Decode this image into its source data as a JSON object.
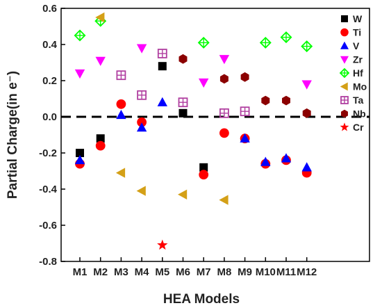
{
  "chart_data": {
    "type": "scatter",
    "title": "",
    "xlabel": "HEA Models",
    "ylabel": "Partial Charge(in e⁻)",
    "categories": [
      "M1",
      "M2",
      "M3",
      "M4",
      "M5",
      "M6",
      "M7",
      "M8",
      "M9",
      "M10",
      "M11",
      "M12"
    ],
    "ylim": [
      -0.8,
      0.6
    ],
    "yticks": [
      "0.6",
      "0.4",
      "0.2",
      "0.0",
      "-0.2",
      "-0.4",
      "-0.6",
      "-0.8"
    ],
    "ytick_values": [
      0.6,
      0.4,
      0.2,
      0.0,
      -0.2,
      -0.4,
      -0.6,
      -0.8
    ],
    "reference_line": 0,
    "legend_position": "right",
    "series": [
      {
        "name": "W",
        "marker": "square",
        "color": "#000000",
        "values": [
          -0.2,
          -0.12,
          null,
          null,
          0.28,
          0.02,
          -0.28,
          null,
          null,
          null,
          null,
          null
        ]
      },
      {
        "name": "Ti",
        "marker": "circle",
        "color": "#ff0000",
        "values": [
          -0.26,
          -0.16,
          0.07,
          -0.03,
          null,
          null,
          -0.32,
          -0.09,
          -0.12,
          -0.26,
          -0.24,
          -0.31
        ]
      },
      {
        "name": "V",
        "marker": "triangle-up",
        "color": "#0000ff",
        "values": [
          -0.24,
          null,
          0.01,
          -0.06,
          0.08,
          null,
          null,
          null,
          -0.12,
          -0.25,
          -0.23,
          -0.28
        ]
      },
      {
        "name": "Zr",
        "marker": "triangle-down",
        "color": "#ff00ff",
        "values": [
          0.24,
          0.31,
          null,
          0.38,
          null,
          null,
          0.19,
          0.32,
          null,
          null,
          null,
          0.18
        ]
      },
      {
        "name": "Hf",
        "marker": "diamond-plus",
        "color": "#00ff00",
        "values": [
          0.45,
          0.53,
          null,
          null,
          null,
          null,
          0.41,
          null,
          null,
          0.41,
          0.44,
          0.39
        ]
      },
      {
        "name": "Mo",
        "marker": "triangle-left",
        "color": "#d4a017",
        "values": [
          null,
          0.55,
          -0.31,
          -0.41,
          null,
          -0.43,
          null,
          -0.46,
          null,
          null,
          null,
          null
        ]
      },
      {
        "name": "Ta",
        "marker": "square-plus",
        "color": "#b03fa0",
        "values": [
          null,
          null,
          0.23,
          0.12,
          0.35,
          0.08,
          null,
          0.02,
          0.03,
          null,
          null,
          null
        ]
      },
      {
        "name": "Nb",
        "marker": "hexagon",
        "color": "#8b0000",
        "values": [
          null,
          null,
          null,
          null,
          null,
          0.32,
          null,
          0.21,
          0.22,
          0.09,
          0.09,
          0.02
        ]
      },
      {
        "name": "Cr",
        "marker": "star",
        "color": "#ff0000",
        "values": [
          null,
          null,
          null,
          null,
          -0.71,
          null,
          null,
          null,
          null,
          null,
          null,
          null
        ]
      }
    ]
  }
}
